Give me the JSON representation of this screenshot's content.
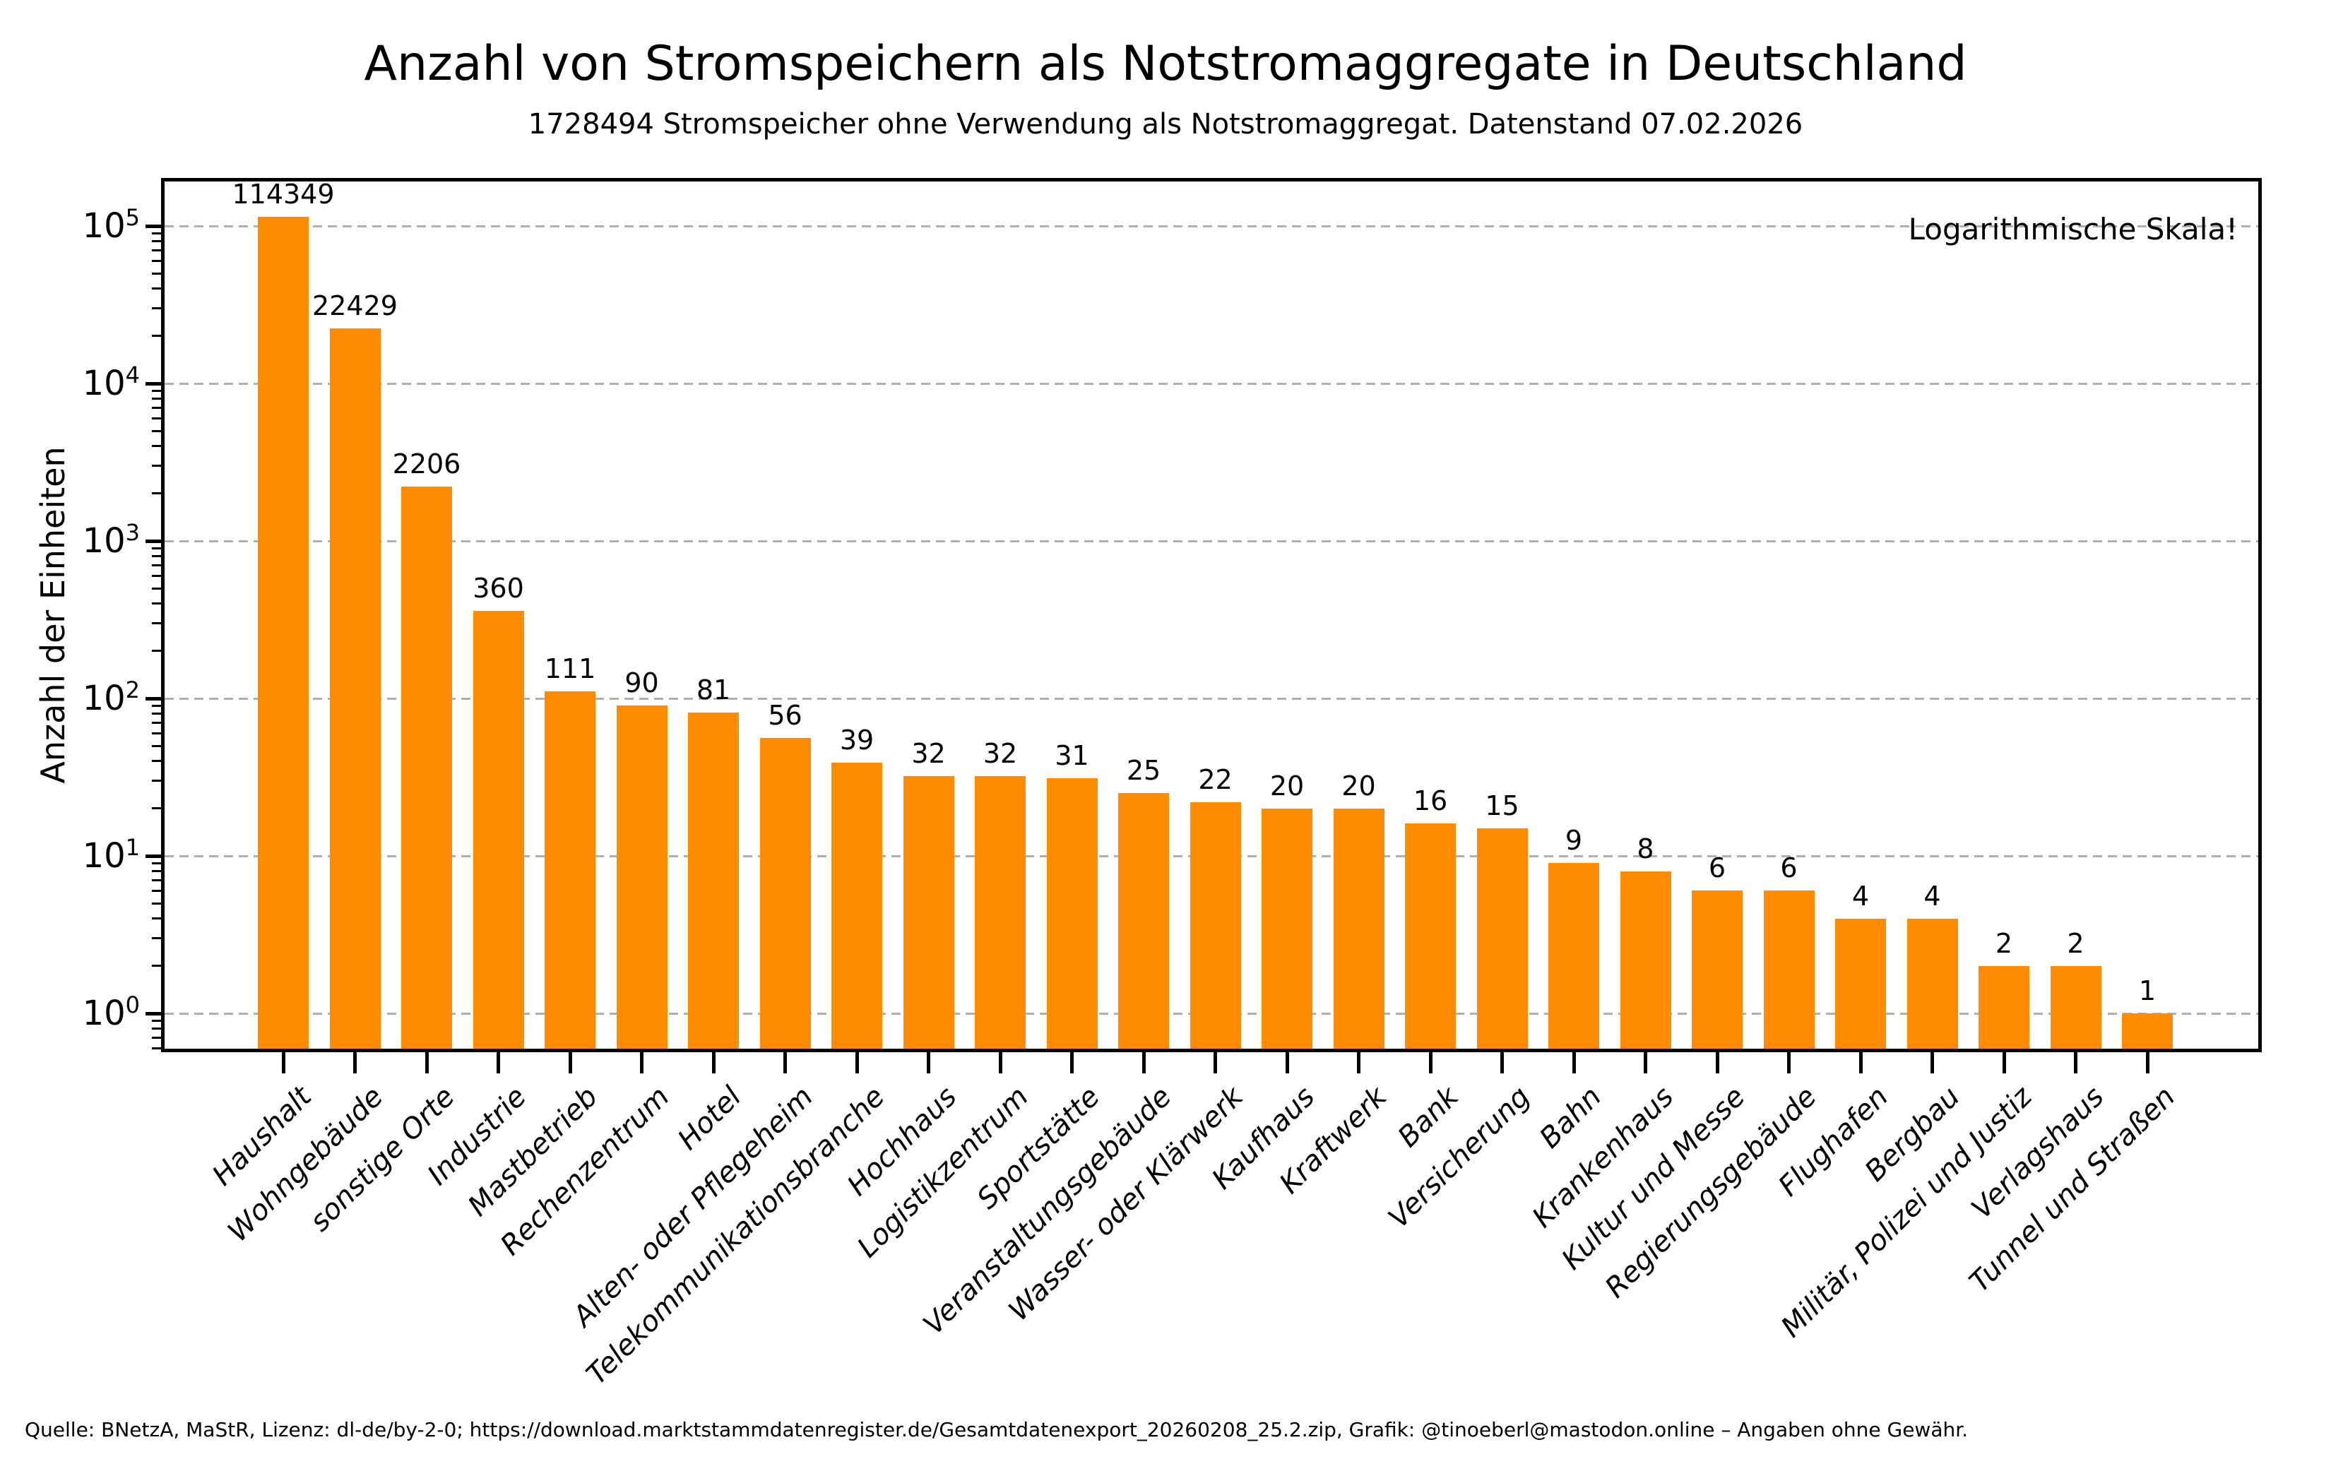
{
  "figure": {
    "source_line": "Quelle: BNetzA, MaStR, Lizenz: dl-de/by-2-0; https://download.marktstammdatenregister.de/Gesamtdatenexport_20260208_25.2.zip, Grafik: @tinoeberl@mastodon.online – Angaben ohne Gewähr."
  },
  "chart_data": {
    "type": "bar",
    "title": "Anzahl von Stromspeichern als Notstromaggregate in Deutschland",
    "subtitle": "1728494 Stromspeicher ohne Verwendung als Notstromaggregat. Datenstand 07.02.2026",
    "annotation": "Logarithmische Skala!",
    "xlabel": "",
    "ylabel": "Anzahl der Einheiten",
    "yscale": "log",
    "ylim": [
      0.57,
      202000
    ],
    "ytick_exponents": [
      0,
      1,
      2,
      3,
      4,
      5
    ],
    "grid": "horizontal dashed at decades",
    "legend": "none",
    "bar_color": "#ff8c00",
    "grid_color": "#b0b0b0",
    "axis_color": "#000000",
    "value_labels": true,
    "categories": [
      "Haushalt",
      "Wohngebäude",
      "sonstige Orte",
      "Industrie",
      "Mastbetrieb",
      "Rechenzentrum",
      "Hotel",
      "Alten- oder Pflegeheim",
      "Telekommunikationsbranche",
      "Hochhaus",
      "Logistikzentrum",
      "Sportstätte",
      "Veranstaltungsgebäude",
      "Wasser- oder Klärwerk",
      "Kaufhaus",
      "Kraftwerk",
      "Bank",
      "Versicherung",
      "Bahn",
      "Krankenhaus",
      "Kultur und Messe",
      "Regierungsgebäude",
      "Flughafen",
      "Bergbau",
      "Militär, Polizei und Justiz",
      "Verlagshaus",
      "Tunnel und Straßen"
    ],
    "values": [
      114349,
      22429,
      2206,
      360,
      111,
      90,
      81,
      56,
      39,
      32,
      32,
      31,
      25,
      22,
      20,
      20,
      16,
      15,
      9,
      8,
      6,
      6,
      4,
      4,
      2,
      2,
      1
    ]
  }
}
